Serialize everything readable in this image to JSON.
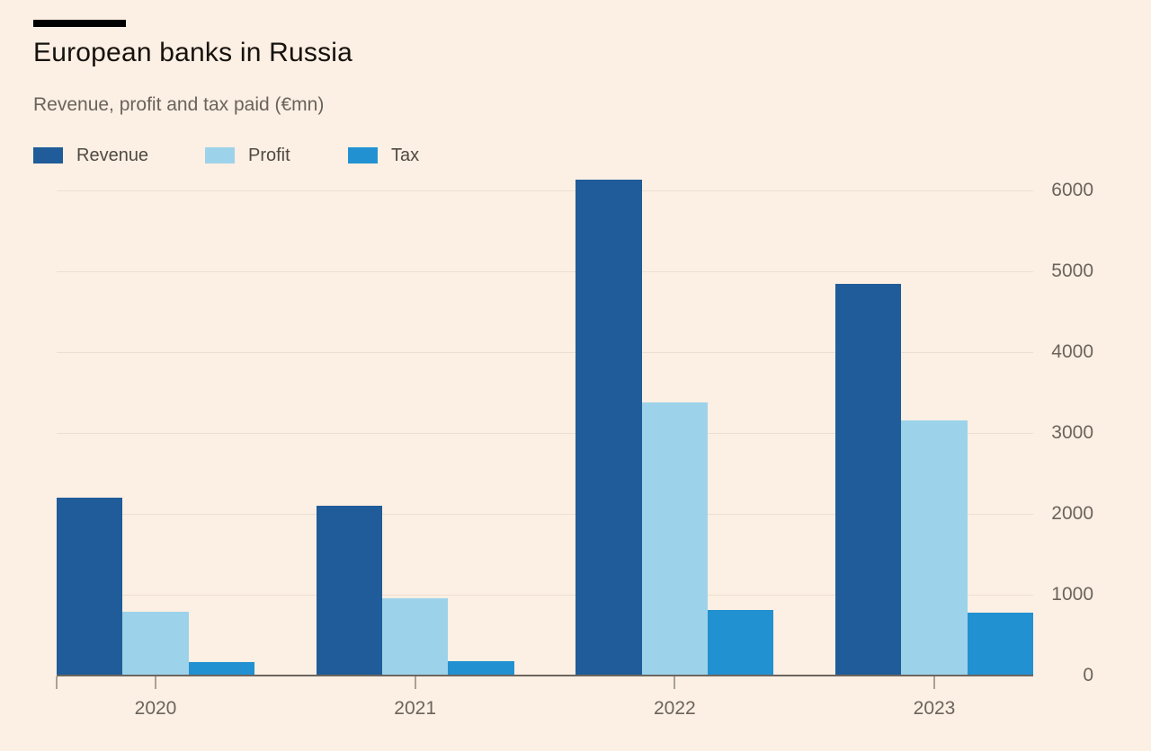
{
  "chart_data": {
    "type": "bar",
    "title": "European banks in Russia",
    "subtitle": "Revenue, profit and tax paid (€mn)",
    "unit": "€mn",
    "categories": [
      "2020",
      "2021",
      "2022",
      "2023"
    ],
    "series": [
      {
        "name": "Revenue",
        "color": "#1f5c99",
        "values": [
          2200,
          2100,
          6130,
          4850
        ]
      },
      {
        "name": "Profit",
        "color": "#9dd3ea",
        "values": [
          790,
          960,
          3380,
          3160
        ]
      },
      {
        "name": "Tax",
        "color": "#2291d1",
        "values": [
          165,
          180,
          815,
          780
        ]
      }
    ],
    "ylim": [
      0,
      6135
    ],
    "yticks": [
      0,
      1000,
      2000,
      3000,
      4000,
      5000,
      6000
    ],
    "grid": true,
    "legend_position": "top-left",
    "y_axis_side": "right",
    "x_axis_ticks": "below-category-centers"
  },
  "colors": {
    "background": "#fcefe3",
    "kicker": "#000000",
    "title_text": "#16120e",
    "subtitle_text": "#6a635b",
    "legend_text": "#4f4a43",
    "axis_text": "#6b645c",
    "grid_line": "#ecdfd2",
    "axis_line": "#6d665f",
    "tick_mark": "#aaa197"
  }
}
